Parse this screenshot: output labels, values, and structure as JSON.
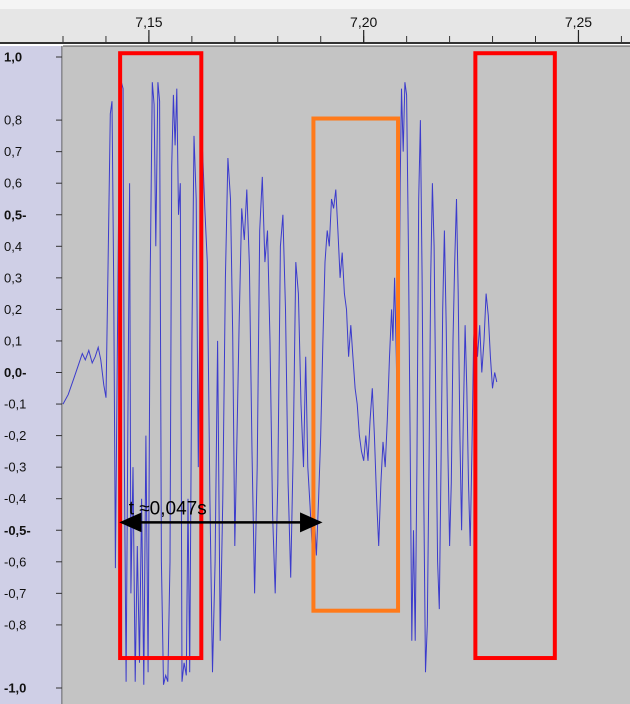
{
  "chart_data": {
    "type": "line",
    "title": "",
    "xlabel": "",
    "ylabel": "",
    "xlim": [
      7.13,
      7.262
    ],
    "ylim": [
      -1.0,
      1.0
    ],
    "x_ticks": [
      {
        "value": 7.15,
        "label": "7,15"
      },
      {
        "value": 7.2,
        "label": "7,20"
      },
      {
        "value": 7.25,
        "label": "7,25"
      }
    ],
    "y_ticks": [
      {
        "value": 1.0,
        "label": "1,0",
        "bold": true
      },
      {
        "value": 0.8,
        "label": "0,8",
        "bold": false
      },
      {
        "value": 0.7,
        "label": "0,7",
        "bold": false
      },
      {
        "value": 0.6,
        "label": "0,6",
        "bold": false
      },
      {
        "value": 0.5,
        "label": "0,5-",
        "bold": true
      },
      {
        "value": 0.4,
        "label": "0,4",
        "bold": false
      },
      {
        "value": 0.3,
        "label": "0,3",
        "bold": false
      },
      {
        "value": 0.2,
        "label": "0,2",
        "bold": false
      },
      {
        "value": 0.1,
        "label": "0,1",
        "bold": false
      },
      {
        "value": 0.0,
        "label": "0,0-",
        "bold": true
      },
      {
        "value": -0.1,
        "label": "-0,1",
        "bold": false
      },
      {
        "value": -0.2,
        "label": "-0,2",
        "bold": false
      },
      {
        "value": -0.3,
        "label": "-0,3",
        "bold": false
      },
      {
        "value": -0.4,
        "label": "-0,4",
        "bold": false
      },
      {
        "value": -0.5,
        "label": "-0,5-",
        "bold": true
      },
      {
        "value": -0.6,
        "label": "-0,6",
        "bold": false
      },
      {
        "value": -0.7,
        "label": "-0,7",
        "bold": false
      },
      {
        "value": -0.8,
        "label": "-0,8",
        "bold": false
      },
      {
        "value": -1.0,
        "label": "-1,0",
        "bold": true
      }
    ],
    "series": [
      {
        "color": "#3b3bcc",
        "points": [
          [
            7.13,
            -0.1
          ],
          [
            7.1312,
            -0.07
          ],
          [
            7.1325,
            -0.02
          ],
          [
            7.1335,
            0.02
          ],
          [
            7.1345,
            0.06
          ],
          [
            7.1352,
            0.04
          ],
          [
            7.136,
            0.07
          ],
          [
            7.1368,
            0.03
          ],
          [
            7.1375,
            0.05
          ],
          [
            7.1382,
            0.08
          ],
          [
            7.1388,
            0.04
          ],
          [
            7.1395,
            -0.04
          ],
          [
            7.14,
            -0.08
          ],
          [
            7.1405,
            0.35
          ],
          [
            7.141,
            0.82
          ],
          [
            7.1414,
            0.86
          ],
          [
            7.1418,
            0.28
          ],
          [
            7.1422,
            -0.62
          ],
          [
            7.1428,
            0.3
          ],
          [
            7.1432,
            0.88
          ],
          [
            7.1436,
            0.92
          ],
          [
            7.144,
            0.9
          ],
          [
            7.1443,
            -0.3
          ],
          [
            7.1447,
            -0.98
          ],
          [
            7.1451,
            -0.15
          ],
          [
            7.1455,
            0.6
          ],
          [
            7.1458,
            -0.7
          ],
          [
            7.1463,
            -0.3
          ],
          [
            7.1468,
            -0.98
          ],
          [
            7.1473,
            -0.55
          ],
          [
            7.1478,
            -0.92
          ],
          [
            7.1483,
            -0.4
          ],
          [
            7.1488,
            -0.99
          ],
          [
            7.1493,
            -0.2
          ],
          [
            7.1498,
            -0.95
          ],
          [
            7.1503,
            0.3
          ],
          [
            7.1508,
            0.92
          ],
          [
            7.1512,
            0.85
          ],
          [
            7.1516,
            0.4
          ],
          [
            7.1521,
            0.92
          ],
          [
            7.1525,
            0.86
          ],
          [
            7.1529,
            -0.6
          ],
          [
            7.1534,
            -0.99
          ],
          [
            7.1539,
            -0.96
          ],
          [
            7.1544,
            -0.98
          ],
          [
            7.1549,
            -0.6
          ],
          [
            7.1553,
            0.65
          ],
          [
            7.1557,
            0.88
          ],
          [
            7.1561,
            0.72
          ],
          [
            7.1565,
            0.9
          ],
          [
            7.1569,
            0.5
          ],
          [
            7.1573,
            0.6
          ],
          [
            7.1577,
            -0.98
          ],
          [
            7.1582,
            -0.92
          ],
          [
            7.1587,
            -0.96
          ],
          [
            7.1591,
            -0.4
          ],
          [
            7.1595,
            -0.95
          ],
          [
            7.16,
            0.1
          ],
          [
            7.1605,
            0.75
          ],
          [
            7.161,
            0.55
          ],
          [
            7.1615,
            -0.3
          ],
          [
            7.162,
            0.4
          ],
          [
            7.1625,
            0.7
          ],
          [
            7.163,
            0.52
          ],
          [
            7.1636,
            0.35
          ],
          [
            7.1642,
            -0.4
          ],
          [
            7.1648,
            -0.95
          ],
          [
            7.1654,
            -0.6
          ],
          [
            7.166,
            0.1
          ],
          [
            7.1666,
            -0.85
          ],
          [
            7.1672,
            -0.4
          ],
          [
            7.1678,
            0.3
          ],
          [
            7.1684,
            0.68
          ],
          [
            7.169,
            0.55
          ],
          [
            7.1695,
            0.12
          ],
          [
            7.17,
            -0.55
          ],
          [
            7.1705,
            -0.2
          ],
          [
            7.171,
            0.15
          ],
          [
            7.1716,
            0.52
          ],
          [
            7.1722,
            0.42
          ],
          [
            7.1728,
            0.58
          ],
          [
            7.1734,
            0.34
          ],
          [
            7.174,
            -0.25
          ],
          [
            7.1746,
            -0.7
          ],
          [
            7.1752,
            -0.3
          ],
          [
            7.1758,
            0.45
          ],
          [
            7.1764,
            0.62
          ],
          [
            7.177,
            0.35
          ],
          [
            7.1776,
            0.45
          ],
          [
            7.1782,
            0.1
          ],
          [
            7.1788,
            -0.45
          ],
          [
            7.1794,
            -0.7
          ],
          [
            7.18,
            -0.35
          ],
          [
            7.1806,
            0.4
          ],
          [
            7.1812,
            0.5
          ],
          [
            7.1818,
            0.2
          ],
          [
            7.1824,
            -0.35
          ],
          [
            7.183,
            -0.65
          ],
          [
            7.1836,
            -0.25
          ],
          [
            7.1842,
            0.35
          ],
          [
            7.1848,
            0.25
          ],
          [
            7.1854,
            -0.1
          ],
          [
            7.186,
            -0.3
          ],
          [
            7.1865,
            0.05
          ],
          [
            7.187,
            -0.3
          ],
          [
            7.1875,
            -0.42
          ],
          [
            7.188,
            -0.55
          ],
          [
            7.1885,
            -0.45
          ],
          [
            7.189,
            -0.58
          ],
          [
            7.1895,
            -0.4
          ],
          [
            7.19,
            -0.2
          ],
          [
            7.1905,
            0.1
          ],
          [
            7.191,
            0.35
          ],
          [
            7.1915,
            0.45
          ],
          [
            7.192,
            0.4
          ],
          [
            7.1925,
            0.55
          ],
          [
            7.193,
            0.52
          ],
          [
            7.1935,
            0.58
          ],
          [
            7.194,
            0.45
          ],
          [
            7.1945,
            0.3
          ],
          [
            7.195,
            0.38
          ],
          [
            7.1955,
            0.25
          ],
          [
            7.196,
            0.2
          ],
          [
            7.1965,
            0.05
          ],
          [
            7.197,
            0.15
          ],
          [
            7.1975,
            0.05
          ],
          [
            7.198,
            -0.05
          ],
          [
            7.1985,
            -0.1
          ],
          [
            7.199,
            -0.2
          ],
          [
            7.1995,
            -0.25
          ],
          [
            7.2,
            -0.28
          ],
          [
            7.2005,
            -0.2
          ],
          [
            7.201,
            -0.28
          ],
          [
            7.2015,
            -0.15
          ],
          [
            7.202,
            -0.05
          ],
          [
            7.2025,
            -0.2
          ],
          [
            7.203,
            -0.4
          ],
          [
            7.2035,
            -0.55
          ],
          [
            7.204,
            -0.35
          ],
          [
            7.2045,
            -0.22
          ],
          [
            7.205,
            -0.3
          ],
          [
            7.2055,
            -0.15
          ],
          [
            7.206,
            0.05
          ],
          [
            7.2065,
            0.2
          ],
          [
            7.2068,
            0.1
          ],
          [
            7.2072,
            0.3
          ],
          [
            7.2076,
            0.05
          ],
          [
            7.208,
            -0.3
          ],
          [
            7.2085,
            0.6
          ],
          [
            7.2088,
            0.9
          ],
          [
            7.2092,
            0.7
          ],
          [
            7.2096,
            0.92
          ],
          [
            7.21,
            0.88
          ],
          [
            7.2104,
            0.4
          ],
          [
            7.2108,
            -0.2
          ],
          [
            7.2112,
            -0.85
          ],
          [
            7.2116,
            -0.5
          ],
          [
            7.212,
            -0.85
          ],
          [
            7.2124,
            -0.3
          ],
          [
            7.2128,
            0.55
          ],
          [
            7.2132,
            0.8
          ],
          [
            7.2136,
            0.3
          ],
          [
            7.214,
            -0.4
          ],
          [
            7.2144,
            -0.95
          ],
          [
            7.2148,
            -0.8
          ],
          [
            7.2152,
            -0.3
          ],
          [
            7.2156,
            0.3
          ],
          [
            7.216,
            0.6
          ],
          [
            7.2164,
            0.4
          ],
          [
            7.2168,
            -0.1
          ],
          [
            7.2172,
            -0.6
          ],
          [
            7.2176,
            -0.75
          ],
          [
            7.218,
            -0.3
          ],
          [
            7.2184,
            0.2
          ],
          [
            7.2188,
            0.45
          ],
          [
            7.2192,
            0.15
          ],
          [
            7.2196,
            -0.25
          ],
          [
            7.22,
            -0.55
          ],
          [
            7.2204,
            -0.35
          ],
          [
            7.2208,
            0.1
          ],
          [
            7.2212,
            0.35
          ],
          [
            7.2216,
            0.55
          ],
          [
            7.222,
            0.25
          ],
          [
            7.2224,
            -0.2
          ],
          [
            7.2228,
            -0.5
          ],
          [
            7.2232,
            -0.15
          ],
          [
            7.2236,
            0.15
          ],
          [
            7.224,
            -0.05
          ],
          [
            7.2244,
            -0.35
          ],
          [
            7.2248,
            -0.55
          ],
          [
            7.2252,
            -0.25
          ],
          [
            7.2256,
            0.1
          ],
          [
            7.226,
            0.2
          ],
          [
            7.2265,
            0.05
          ],
          [
            7.227,
            0.15
          ],
          [
            7.2275,
            0.0
          ],
          [
            7.228,
            0.1
          ],
          [
            7.2285,
            0.25
          ],
          [
            7.229,
            0.18
          ],
          [
            7.2295,
            0.05
          ],
          [
            7.23,
            -0.05
          ],
          [
            7.2305,
            0.0
          ],
          [
            7.231,
            -0.03
          ]
        ]
      }
    ],
    "annotations": {
      "interval_label": "t ≈0,047s",
      "interval_x": [
        7.1432,
        7.1903
      ],
      "interval_y": -0.475,
      "boxes": [
        {
          "color": "#ff0000",
          "x": [
            7.1433,
            7.1622
          ],
          "y": [
            -0.905,
            1.012
          ]
        },
        {
          "color": "#ff7a1a",
          "x": [
            7.1883,
            7.208
          ],
          "y": [
            -0.755,
            0.805
          ]
        },
        {
          "color": "#ff0000",
          "x": [
            7.226,
            7.2445
          ],
          "y": [
            -0.905,
            1.012
          ]
        }
      ]
    }
  },
  "colors": {
    "plot_bg": "#c4c4c4",
    "axis_panel_bg": "#cfcfe6",
    "ruler_bg": "#e6e6e6",
    "waveform": "#3b3bcc"
  }
}
